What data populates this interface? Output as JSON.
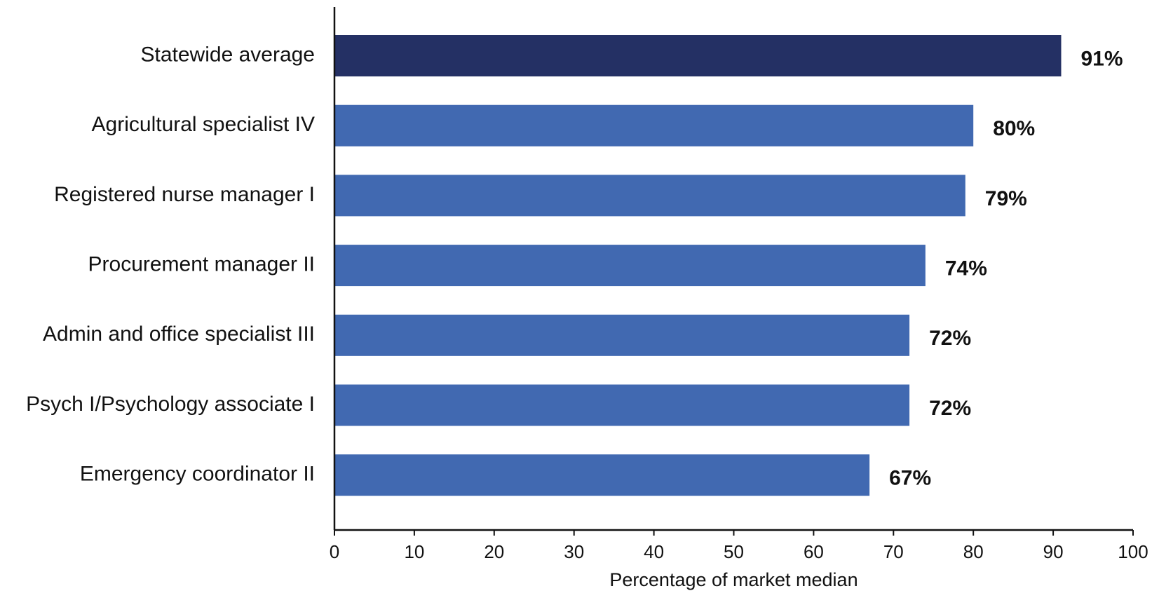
{
  "chart_data": {
    "type": "bar",
    "orientation": "horizontal",
    "categories": [
      "Statewide average",
      "Agricultural specialist IV",
      "Registered nurse manager I",
      "Procurement manager II",
      "Admin and office specialist III",
      "Psych I/Psychology associate I",
      "Emergency coordinator II"
    ],
    "values": [
      91,
      80,
      79,
      74,
      72,
      72,
      67
    ],
    "data_labels": [
      "91%",
      "80%",
      "79%",
      "74%",
      "72%",
      "72%",
      "67%"
    ],
    "title": "",
    "xlabel": "Percentage of market median",
    "ylabel": "",
    "xlim": [
      0,
      100
    ],
    "xticks": [
      "0",
      "10",
      "20",
      "30",
      "40",
      "50",
      "60",
      "70",
      "80",
      "90",
      "100"
    ],
    "grid": false,
    "legend": "none",
    "colors": {
      "highlight": "#243064",
      "default": "#4169B1"
    },
    "highlight_index": 0
  }
}
